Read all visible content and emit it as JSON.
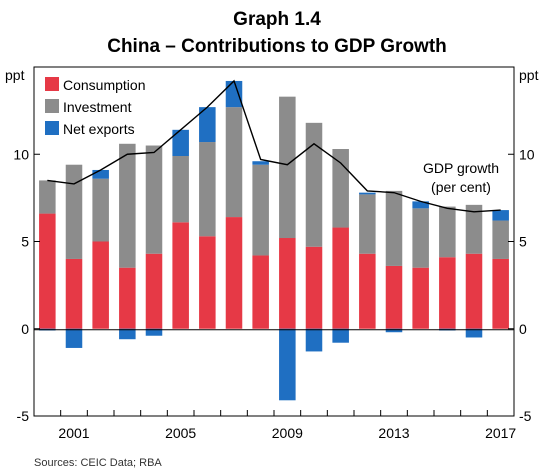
{
  "chart_data": {
    "type": "bar",
    "title": "Graph 1.4",
    "subtitle": "China – Contributions to GDP Growth",
    "ylabel_left": "ppt",
    "ylabel_right": "ppt",
    "ylim": [
      -5,
      15
    ],
    "yticks": [
      -5,
      0,
      5,
      10
    ],
    "xticks": [
      "2001",
      "2005",
      "2009",
      "2013",
      "2017"
    ],
    "categories": [
      "2000",
      "2001",
      "2002",
      "2003",
      "2004",
      "2005",
      "2006",
      "2007",
      "2008",
      "2009",
      "2010",
      "2011",
      "2012",
      "2013",
      "2014",
      "2015",
      "2016",
      "2017"
    ],
    "series": [
      {
        "name": "Consumption",
        "color": "#e63946",
        "values": [
          6.6,
          4.0,
          5.0,
          3.5,
          4.3,
          6.1,
          5.3,
          6.4,
          4.2,
          5.2,
          4.7,
          5.8,
          4.3,
          3.6,
          3.5,
          4.1,
          4.3,
          4.0
        ]
      },
      {
        "name": "Investment",
        "color": "#8c8c8c",
        "values": [
          1.9,
          5.4,
          3.6,
          7.1,
          6.2,
          3.8,
          5.4,
          6.3,
          5.2,
          8.1,
          7.1,
          4.5,
          3.4,
          4.3,
          3.4,
          2.9,
          2.8,
          2.2
        ]
      },
      {
        "name": "Net exports",
        "color": "#1f6fc2",
        "values": [
          -0.1,
          -1.1,
          0.5,
          -0.6,
          -0.4,
          1.5,
          2.0,
          1.5,
          0.2,
          -4.1,
          -1.3,
          -0.8,
          0.1,
          -0.2,
          0.4,
          -0.1,
          -0.5,
          0.6
        ]
      }
    ],
    "line": {
      "name": "GDP growth",
      "color": "#000000",
      "values": [
        8.5,
        8.3,
        9.1,
        10.0,
        10.1,
        11.4,
        12.7,
        14.2,
        9.7,
        9.4,
        10.6,
        9.5,
        7.9,
        7.8,
        7.3,
        6.9,
        6.7,
        6.8
      ]
    },
    "annotation": {
      "line1": "GDP growth",
      "line2": "(per cent)"
    },
    "legend": {
      "placement": "top-left"
    },
    "grid": false
  },
  "footer": {
    "source": "Sources: CEIC Data; RBA"
  }
}
